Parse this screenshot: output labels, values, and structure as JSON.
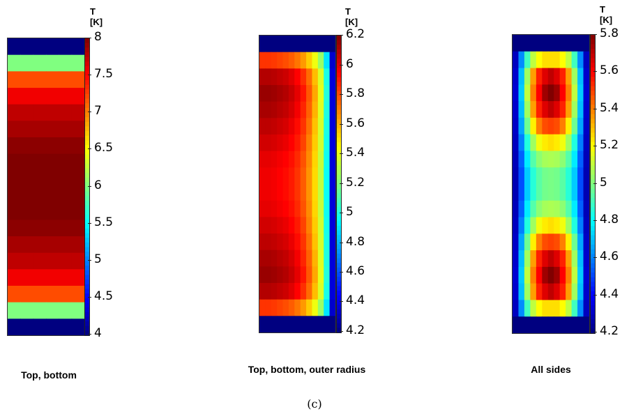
{
  "figure_label": "(c)",
  "chart_data": [
    {
      "type": "heatmap",
      "caption": "Top, bottom",
      "colorbar_label": "T [K]",
      "zlim": [
        4,
        8
      ],
      "ticks": [
        "4",
        "4.5",
        "5",
        "5.5",
        "6",
        "6.5",
        "7",
        "7.5",
        "8"
      ],
      "tick_values": [
        4,
        4.5,
        5,
        5.5,
        6,
        6.5,
        7,
        7.5,
        8
      ],
      "colormap": "jet",
      "grid_values": [
        [
          4.0,
          4.0,
          4.0,
          4.0,
          4.0,
          4.0
        ],
        [
          6.0,
          6.0,
          6.0,
          6.0,
          6.0,
          6.0
        ],
        [
          7.2,
          7.2,
          7.2,
          7.2,
          7.2,
          7.2
        ],
        [
          7.55,
          7.55,
          7.55,
          7.55,
          7.55,
          7.55
        ],
        [
          7.75,
          7.75,
          7.75,
          7.75,
          7.75,
          7.75
        ],
        [
          7.85,
          7.85,
          7.85,
          7.85,
          7.85,
          7.85
        ],
        [
          7.95,
          7.95,
          7.95,
          7.95,
          7.95,
          7.95
        ],
        [
          8.0,
          8.0,
          8.0,
          8.0,
          8.0,
          8.0
        ],
        [
          8.0,
          8.0,
          8.0,
          8.0,
          8.0,
          8.0
        ],
        [
          8.0,
          8.0,
          8.0,
          8.0,
          8.0,
          8.0
        ],
        [
          8.0,
          8.0,
          8.0,
          8.0,
          8.0,
          8.0
        ],
        [
          7.95,
          7.95,
          7.95,
          7.95,
          7.95,
          7.95
        ],
        [
          7.85,
          7.85,
          7.85,
          7.85,
          7.85,
          7.85
        ],
        [
          7.75,
          7.75,
          7.75,
          7.75,
          7.75,
          7.75
        ],
        [
          7.55,
          7.55,
          7.55,
          7.55,
          7.55,
          7.55
        ],
        [
          7.2,
          7.2,
          7.2,
          7.2,
          7.2,
          7.2
        ],
        [
          6.0,
          6.0,
          6.0,
          6.0,
          6.0,
          6.0
        ],
        [
          4.0,
          4.0,
          4.0,
          4.0,
          4.0,
          4.0
        ]
      ]
    },
    {
      "type": "heatmap",
      "caption": "Top, bottom, outer radius",
      "colorbar_label": "T [K]",
      "zlim": [
        4.2,
        6.2
      ],
      "ticks": [
        "4.2",
        "4.4",
        "4.6",
        "4.8",
        "5",
        "5.2",
        "5.4",
        "5.6",
        "5.8",
        "6",
        "6.2"
      ],
      "tick_values": [
        4.2,
        4.4,
        4.6,
        4.8,
        5.0,
        5.2,
        5.4,
        5.6,
        5.8,
        6.0,
        6.2
      ],
      "colormap": "jet",
      "grid_values": [
        [
          4.2,
          4.2,
          4.2,
          4.2,
          4.2,
          4.2,
          4.2,
          4.2,
          4.2,
          4.2,
          4.2,
          4.2,
          4.2
        ],
        [
          5.85,
          5.85,
          5.84,
          5.82,
          5.8,
          5.77,
          5.72,
          5.65,
          5.55,
          5.42,
          5.25,
          4.9,
          4.35
        ],
        [
          6.1,
          6.1,
          6.09,
          6.07,
          6.05,
          6.01,
          5.95,
          5.86,
          5.74,
          5.58,
          5.38,
          5.0,
          4.38
        ],
        [
          6.15,
          6.15,
          6.14,
          6.12,
          6.1,
          6.06,
          6.0,
          5.91,
          5.78,
          5.62,
          5.4,
          5.02,
          4.38
        ],
        [
          6.12,
          6.12,
          6.11,
          6.09,
          6.07,
          6.03,
          5.97,
          5.88,
          5.76,
          5.6,
          5.39,
          5.01,
          4.38
        ],
        [
          6.08,
          6.08,
          6.07,
          6.05,
          6.03,
          5.99,
          5.93,
          5.85,
          5.73,
          5.57,
          5.37,
          5.0,
          4.38
        ],
        [
          6.04,
          6.04,
          6.03,
          6.01,
          5.99,
          5.95,
          5.9,
          5.82,
          5.7,
          5.55,
          5.36,
          4.99,
          4.38
        ],
        [
          6.0,
          6.0,
          5.99,
          5.97,
          5.95,
          5.92,
          5.87,
          5.79,
          5.68,
          5.53,
          5.34,
          4.98,
          4.38
        ],
        [
          5.98,
          5.98,
          5.97,
          5.95,
          5.93,
          5.9,
          5.85,
          5.77,
          5.66,
          5.52,
          5.33,
          4.97,
          4.38
        ],
        [
          5.98,
          5.98,
          5.97,
          5.95,
          5.93,
          5.9,
          5.85,
          5.77,
          5.66,
          5.52,
          5.33,
          4.97,
          4.38
        ],
        [
          6.0,
          6.0,
          5.99,
          5.97,
          5.95,
          5.92,
          5.87,
          5.79,
          5.68,
          5.53,
          5.34,
          4.98,
          4.38
        ],
        [
          6.04,
          6.04,
          6.03,
          6.01,
          5.99,
          5.95,
          5.9,
          5.82,
          5.7,
          5.55,
          5.36,
          4.99,
          4.38
        ],
        [
          6.08,
          6.08,
          6.07,
          6.05,
          6.03,
          5.99,
          5.93,
          5.85,
          5.73,
          5.57,
          5.37,
          5.0,
          4.38
        ],
        [
          6.12,
          6.12,
          6.11,
          6.09,
          6.07,
          6.03,
          5.97,
          5.88,
          5.76,
          5.6,
          5.39,
          5.01,
          4.38
        ],
        [
          6.15,
          6.15,
          6.14,
          6.12,
          6.1,
          6.06,
          6.0,
          5.91,
          5.78,
          5.62,
          5.4,
          5.02,
          4.38
        ],
        [
          6.1,
          6.1,
          6.09,
          6.07,
          6.05,
          6.01,
          5.95,
          5.86,
          5.74,
          5.58,
          5.38,
          5.0,
          4.38
        ],
        [
          5.85,
          5.85,
          5.84,
          5.82,
          5.8,
          5.77,
          5.72,
          5.65,
          5.55,
          5.42,
          5.25,
          4.9,
          4.35
        ],
        [
          4.2,
          4.2,
          4.2,
          4.2,
          4.2,
          4.2,
          4.2,
          4.2,
          4.2,
          4.2,
          4.2,
          4.2,
          4.2
        ]
      ]
    },
    {
      "type": "heatmap",
      "caption": "All sides",
      "colorbar_label": "T [K]",
      "zlim": [
        4.2,
        5.8
      ],
      "ticks": [
        "4.2",
        "4.4",
        "4.6",
        "4.8",
        "5",
        "5.2",
        "5.4",
        "5.6",
        "5.8"
      ],
      "tick_values": [
        4.2,
        4.4,
        4.6,
        4.8,
        5.0,
        5.2,
        5.4,
        5.6,
        5.8
      ],
      "colormap": "jet",
      "grid_values": [
        [
          4.2,
          4.2,
          4.2,
          4.2,
          4.2,
          4.2,
          4.2,
          4.2,
          4.2,
          4.2,
          4.2,
          4.2,
          4.2
        ],
        [
          4.3,
          4.62,
          4.9,
          5.1,
          5.2,
          5.25,
          5.25,
          5.25,
          5.2,
          5.1,
          4.9,
          4.62,
          4.3
        ],
        [
          4.32,
          4.7,
          5.05,
          5.35,
          5.55,
          5.65,
          5.7,
          5.65,
          5.55,
          5.35,
          5.05,
          4.7,
          4.32
        ],
        [
          4.33,
          4.72,
          5.1,
          5.4,
          5.6,
          5.75,
          5.8,
          5.75,
          5.6,
          5.4,
          5.1,
          4.72,
          4.33
        ],
        [
          4.32,
          4.7,
          5.05,
          5.35,
          5.55,
          5.65,
          5.7,
          5.65,
          5.55,
          5.35,
          5.05,
          4.7,
          4.32
        ],
        [
          4.31,
          4.66,
          4.97,
          5.22,
          5.4,
          5.48,
          5.5,
          5.48,
          5.4,
          5.22,
          4.97,
          4.66,
          4.31
        ],
        [
          4.3,
          4.6,
          4.85,
          5.05,
          5.18,
          5.23,
          5.25,
          5.23,
          5.18,
          5.05,
          4.85,
          4.6,
          4.3
        ],
        [
          4.29,
          4.55,
          4.77,
          4.93,
          5.02,
          5.06,
          5.07,
          5.06,
          5.02,
          4.93,
          4.77,
          4.55,
          4.29
        ],
        [
          4.28,
          4.52,
          4.72,
          4.86,
          4.94,
          4.98,
          4.99,
          4.98,
          4.94,
          4.86,
          4.72,
          4.52,
          4.28
        ],
        [
          4.28,
          4.52,
          4.72,
          4.86,
          4.94,
          4.98,
          4.99,
          4.98,
          4.94,
          4.86,
          4.72,
          4.52,
          4.28
        ],
        [
          4.29,
          4.55,
          4.77,
          4.93,
          5.02,
          5.06,
          5.07,
          5.06,
          5.02,
          4.93,
          4.77,
          4.55,
          4.29
        ],
        [
          4.3,
          4.6,
          4.85,
          5.05,
          5.18,
          5.23,
          5.25,
          5.23,
          5.18,
          5.05,
          4.85,
          4.6,
          4.3
        ],
        [
          4.31,
          4.66,
          4.97,
          5.22,
          5.4,
          5.48,
          5.5,
          5.48,
          5.4,
          5.22,
          4.97,
          4.66,
          4.31
        ],
        [
          4.32,
          4.7,
          5.05,
          5.35,
          5.55,
          5.65,
          5.7,
          5.65,
          5.55,
          5.35,
          5.05,
          4.7,
          4.32
        ],
        [
          4.33,
          4.72,
          5.1,
          5.4,
          5.6,
          5.75,
          5.8,
          5.75,
          5.6,
          5.4,
          5.1,
          4.72,
          4.33
        ],
        [
          4.32,
          4.7,
          5.05,
          5.35,
          5.55,
          5.65,
          5.7,
          5.65,
          5.55,
          5.35,
          5.05,
          4.7,
          4.32
        ],
        [
          4.3,
          4.62,
          4.9,
          5.1,
          5.2,
          5.25,
          5.25,
          5.25,
          5.2,
          5.1,
          4.9,
          4.62,
          4.3
        ],
        [
          4.2,
          4.2,
          4.2,
          4.2,
          4.2,
          4.2,
          4.2,
          4.2,
          4.2,
          4.2,
          4.2,
          4.2,
          4.2
        ]
      ]
    }
  ]
}
